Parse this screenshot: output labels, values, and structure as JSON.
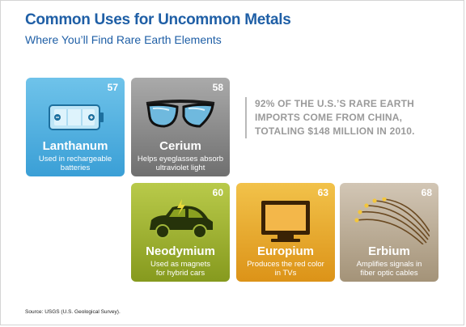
{
  "header": {
    "title": "Common Uses for Uncommon Metals",
    "subtitle": "Where You’ll Find Rare Earth Elements"
  },
  "tiles": [
    {
      "number": "57",
      "name": "Lanthanum",
      "desc_line1": "Used in rechargeable",
      "desc_line2": "batteries",
      "icon": "battery-icon",
      "color": "#4aaee0"
    },
    {
      "number": "58",
      "name": "Cerium",
      "desc_line1": "Helps eyeglasses absorb",
      "desc_line2": "ultraviolet light",
      "icon": "sunglasses-icon",
      "color": "#8a8a8a"
    },
    {
      "number": "60",
      "name": "Neodymium",
      "desc_line1": "Used as magnets",
      "desc_line2": "for hybrid cars",
      "icon": "hybrid-car-icon",
      "color": "#9fb234"
    },
    {
      "number": "63",
      "name": "Europium",
      "desc_line1": "Produces the red color",
      "desc_line2": "in TVs",
      "icon": "tv-icon",
      "color": "#e9ab2c"
    },
    {
      "number": "68",
      "name": "Erbium",
      "desc_line1": "Amplifies signals in",
      "desc_line2": "fiber optic cables",
      "icon": "fiber-optic-icon",
      "color": "#bcae98"
    }
  ],
  "stat": {
    "line1": "92% of the U.S.’s rare earth",
    "line2": "imports come from China,",
    "line3": "totaling $148 million in 2010."
  },
  "source": "Source: USGS (U.S. Geological Survey)."
}
